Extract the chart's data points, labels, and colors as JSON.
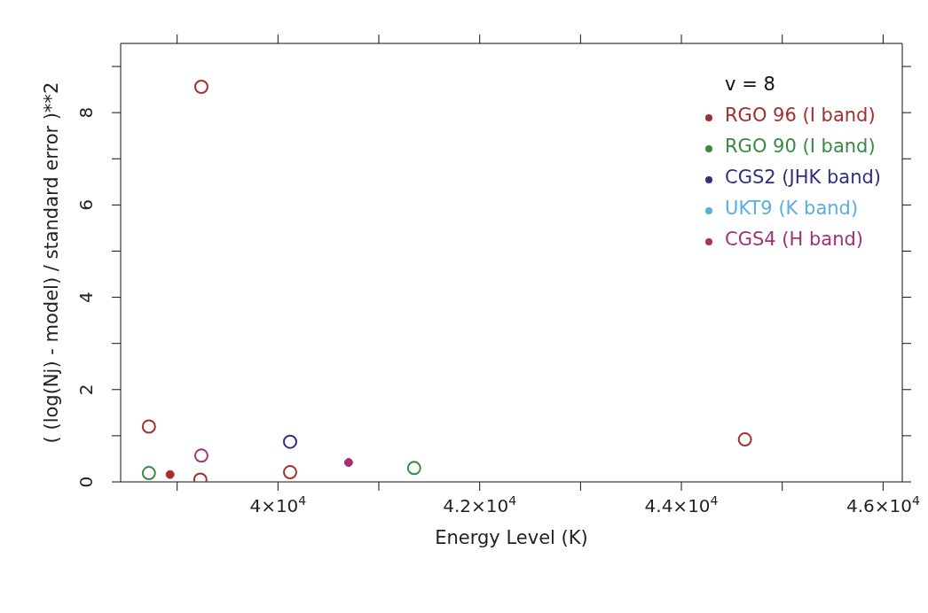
{
  "chart_data": {
    "type": "scatter",
    "xlabel": "Energy Level (K)",
    "ylabel": "( (log(Nj) - model) / standard error )**2",
    "legend_title": "v = 8",
    "xlim": [
      38440,
      46190
    ],
    "ylim": [
      0,
      9.5
    ],
    "xticks": [
      {
        "value": 39000,
        "label": null
      },
      {
        "value": 40000,
        "label": "4×10$^{4}$"
      },
      {
        "value": 41000,
        "label": null
      },
      {
        "value": 42000,
        "label": "4.2×10$^{4}$"
      },
      {
        "value": 43000,
        "label": null
      },
      {
        "value": 44000,
        "label": "4.4×10$^{4}$"
      },
      {
        "value": 45000,
        "label": null
      },
      {
        "value": 46000,
        "label": "4.6×10$^{4}$"
      }
    ],
    "yticks": [
      0,
      {
        "value": 1,
        "label": null
      },
      2,
      {
        "value": 3,
        "label": null
      },
      4,
      {
        "value": 5,
        "label": null
      },
      6,
      {
        "value": 7,
        "label": null
      },
      8,
      {
        "value": 9,
        "label": null
      }
    ],
    "grid": false,
    "legend": "top right",
    "marker": "circle",
    "series": [
      {
        "name": "RGO 96 (I band)",
        "color": "#a3302f",
        "x": [
          38720,
          39240,
          39230,
          40120,
          44630
        ],
        "values": [
          1.2,
          8.56,
          0.05,
          0.21,
          0.92
        ]
      },
      {
        "name": "RGO 90 (I band)",
        "color": "#3b8a43",
        "x": [
          38720,
          41350
        ],
        "values": [
          0.19,
          0.3
        ]
      },
      {
        "name": "CGS2 (JHK band)",
        "color": "#2f3080",
        "x": [
          40120
        ],
        "values": [
          0.87
        ]
      },
      {
        "name": "UKT9 (K band)",
        "color": "#5aaee0"
      },
      {
        "name": "CGS4 (H band)",
        "color": "#a33272",
        "x": [
          39240
        ],
        "values": [
          0.57
        ]
      },
      {
        "color": "#a33272",
        "x": [
          40700
        ],
        "values": [
          0.42
        ]
      },
      {
        "color": "#a3302f",
        "x": [
          38930
        ],
        "values": [
          0.16
        ]
      }
    ]
  }
}
